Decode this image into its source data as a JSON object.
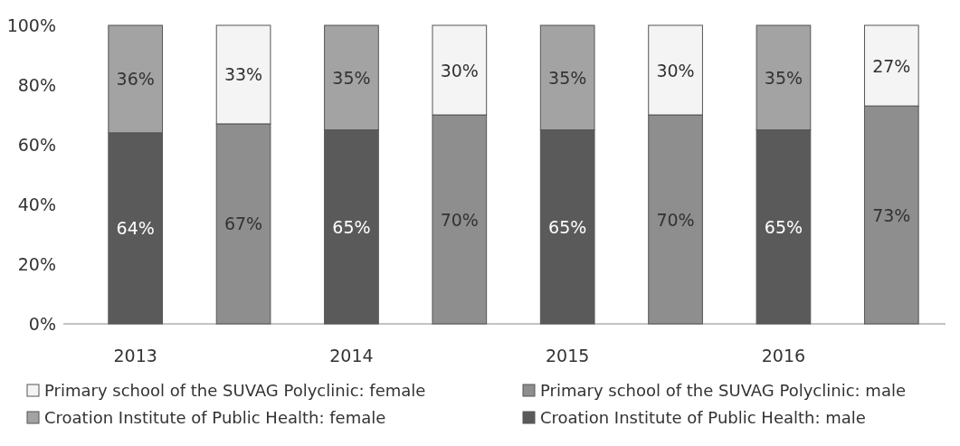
{
  "chart_data": {
    "type": "bar",
    "stacked": true,
    "categories": [
      "2013",
      null,
      "2014",
      null,
      "2015",
      null,
      "2016",
      null
    ],
    "series": [
      {
        "name": "Croation Institute of Public Health: male",
        "color": "#5a5a5a",
        "values": [
          0.64,
          null,
          0.65,
          null,
          0.65,
          null,
          0.65,
          null
        ],
        "value_labels": [
          "64%",
          null,
          "65%",
          null,
          "65%",
          null,
          "65%",
          null
        ]
      },
      {
        "name": "Croation Institute of Public Health: female",
        "color": "#a3a3a3",
        "values": [
          0.36,
          null,
          0.35,
          null,
          0.35,
          null,
          0.35,
          null
        ],
        "value_labels": [
          "36%",
          null,
          "35%",
          null,
          "35%",
          null,
          "35%",
          null
        ]
      },
      {
        "name": "Primary school of the SUVAG Polyclinic: male",
        "color": "#8e8e8e",
        "values": [
          null,
          0.67,
          null,
          0.7,
          null,
          0.7,
          null,
          0.73
        ],
        "value_labels": [
          null,
          "67%",
          null,
          "70%",
          null,
          "70%",
          null,
          "73%"
        ]
      },
      {
        "name": "Primary school of the SUVAG Polyclinic: female",
        "color": "#f4f4f4",
        "values": [
          null,
          0.33,
          null,
          0.3,
          null,
          0.3,
          null,
          0.27
        ],
        "value_labels": [
          null,
          "33%",
          null,
          "30%",
          null,
          "30%",
          null,
          "27%"
        ]
      }
    ],
    "ylim": [
      0,
      1
    ],
    "yticks": [
      {
        "value": 0,
        "label": "0%"
      },
      {
        "value": 0.2,
        "label": "20%"
      },
      {
        "value": 0.4,
        "label": "40%"
      },
      {
        "value": 0.6,
        "label": "60%"
      },
      {
        "value": 0.8,
        "label": "80%"
      },
      {
        "value": 1,
        "label": "100%"
      }
    ],
    "legend": "bottom"
  }
}
